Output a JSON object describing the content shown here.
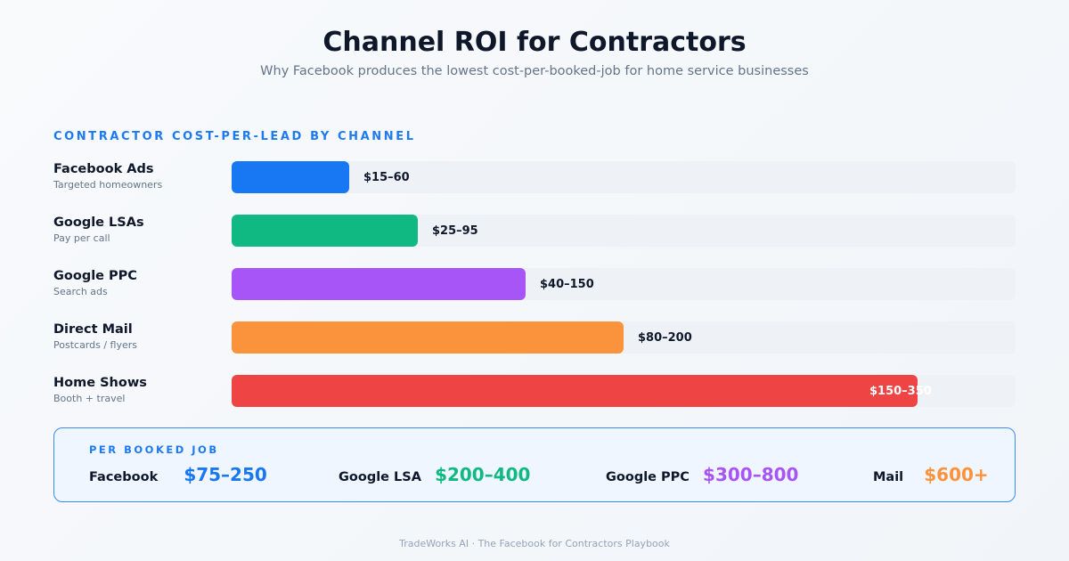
{
  "header": {
    "title": "Channel ROI for Contractors",
    "subtitle": "Why Facebook produces the lowest cost-per-booked-job for home service businesses"
  },
  "chart_data": {
    "type": "bar",
    "orientation": "horizontal",
    "title": "CONTRACTOR COST-PER-LEAD BY CHANNEL",
    "categories": [
      "Facebook Ads",
      "Google LSAs",
      "Google PPC",
      "Direct Mail",
      "Home Shows"
    ],
    "subtitles": [
      "Targeted homeowners",
      "Pay per call",
      "Search ads",
      "Postcards / flyers",
      "Booth + travel"
    ],
    "data_labels": [
      "$15–60",
      "$25–95",
      "$40–150",
      "$80–200",
      "$150–350"
    ],
    "values": [
      60,
      95,
      150,
      200,
      350
    ],
    "xlim": [
      0,
      400
    ],
    "colors": [
      "#1877f2",
      "#10b981",
      "#a855f7",
      "#fb923c",
      "#ef4444"
    ],
    "grid": false,
    "legend": "none"
  },
  "summary": {
    "label": "PER BOOKED JOB",
    "items": [
      {
        "name": "Facebook",
        "value": "$75–250",
        "color": "#1877f2"
      },
      {
        "name": "Google LSA",
        "value": "$200–400",
        "color": "#10b981"
      },
      {
        "name": "Google PPC",
        "value": "$300–800",
        "color": "#a855f7"
      },
      {
        "name": "Mail",
        "value": "$600+",
        "color": "#fb923c"
      }
    ]
  },
  "footer": {
    "text": "TradeWorks AI · The Facebook for Contractors Playbook"
  }
}
